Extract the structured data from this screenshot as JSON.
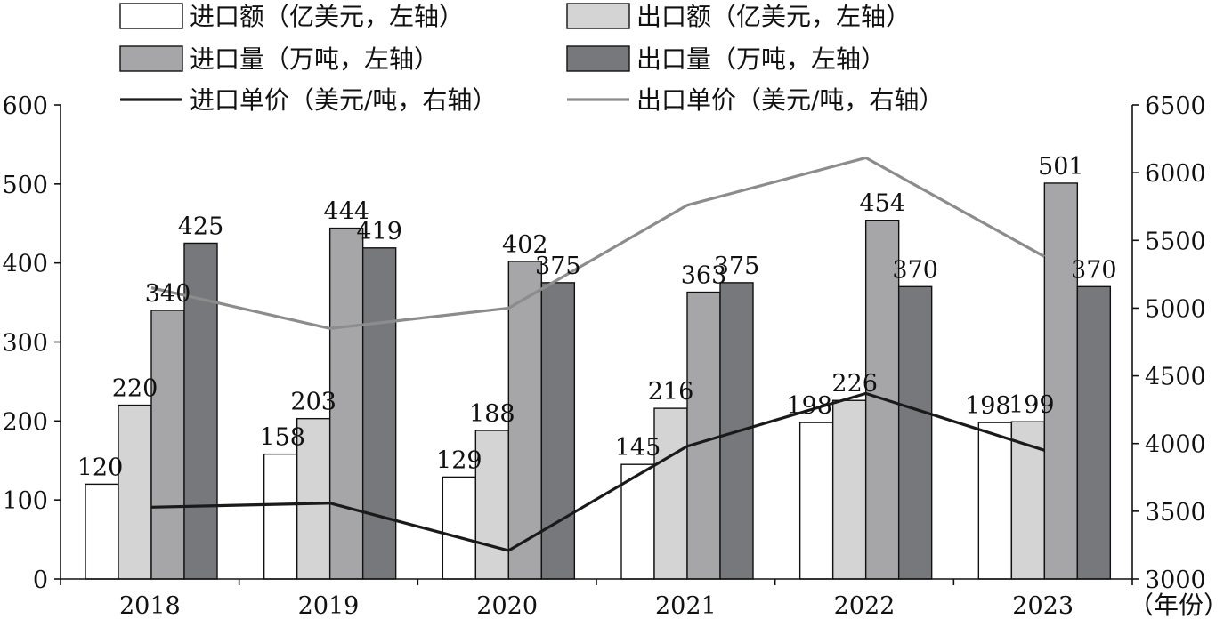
{
  "chart_data": {
    "type": "bar",
    "categories": [
      "2018",
      "2019",
      "2020",
      "2021",
      "2022",
      "2023"
    ],
    "x_unit_label": "（年份）",
    "series": [
      {
        "name": "进口额（亿美元，左轴）",
        "kind": "bar",
        "axis": "left",
        "color": "#ffffff",
        "values": [
          120,
          158,
          129,
          145,
          198,
          198
        ]
      },
      {
        "name": "出口额（亿美元，左轴）",
        "kind": "bar",
        "axis": "left",
        "color": "#d4d4d4",
        "values": [
          220,
          203,
          188,
          216,
          226,
          199
        ]
      },
      {
        "name": "进口量（万吨，左轴）",
        "kind": "bar",
        "axis": "left",
        "color": "#a6a6a8",
        "values": [
          340,
          444,
          402,
          363,
          454,
          501
        ]
      },
      {
        "name": "出口量（万吨，左轴）",
        "kind": "bar",
        "axis": "left",
        "color": "#77787b",
        "values": [
          425,
          419,
          375,
          375,
          370,
          370
        ]
      },
      {
        "name": "进口单价（美元/吨，右轴）",
        "kind": "line",
        "axis": "right",
        "color": "#1a1a1a",
        "values": [
          3530,
          3560,
          3210,
          3980,
          4370,
          3950
        ]
      },
      {
        "name": "出口单价（美元/吨，右轴）",
        "kind": "line",
        "axis": "right",
        "color": "#8c8c8c",
        "values": [
          5150,
          4850,
          5000,
          5760,
          6110,
          5380
        ]
      }
    ],
    "y_left": {
      "min": 0,
      "max": 600,
      "ticks": [
        0,
        100,
        200,
        300,
        400,
        500,
        600
      ]
    },
    "y_right": {
      "min": 3000,
      "max": 6500,
      "ticks": [
        3000,
        3500,
        4000,
        4500,
        5000,
        5500,
        6000,
        6500
      ]
    },
    "data_labels": {
      "进口额": [
        "120",
        "158",
        "129",
        "145",
        "198",
        "198"
      ],
      "出口额": [
        "220",
        "203",
        "188",
        "216",
        "226",
        "199"
      ],
      "进口量": [
        "340",
        "444",
        "402",
        "363",
        "454",
        "501"
      ],
      "出口量": [
        "425",
        "419",
        "375",
        "375",
        "370",
        "370"
      ]
    },
    "legend_position": "top",
    "grid": false
  }
}
